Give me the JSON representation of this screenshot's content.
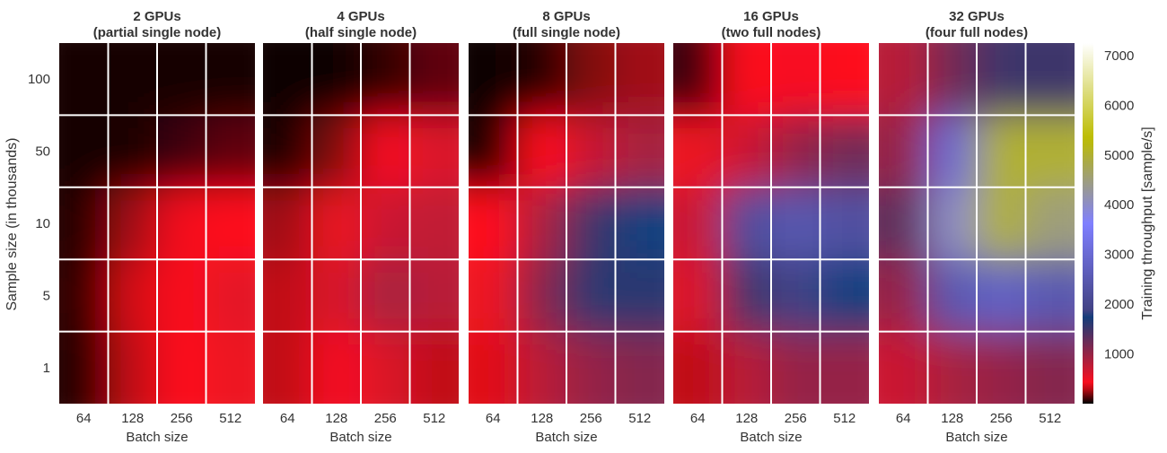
{
  "chart_data": {
    "type": "heatmap",
    "ylabel": "Sample size (in thousands)",
    "xlabel": "Batch size",
    "x_categories": [
      "64",
      "128",
      "256",
      "512"
    ],
    "y_categories": [
      "100",
      "50",
      "10",
      "5",
      "1"
    ],
    "colorbar": {
      "label": "Training throughput [sample/s]",
      "range": [
        0,
        7250
      ],
      "ticks": [
        "1000",
        "2000",
        "3000",
        "4000",
        "5000",
        "6000",
        "7000"
      ],
      "colormap": "gist_stern"
    },
    "grid": true,
    "panels": [
      {
        "title": "2 GPUs",
        "subtitle": "(partial single node)",
        "values": [
          [
            30,
            30,
            30,
            30
          ],
          [
            30,
            40,
            100,
            150
          ],
          [
            60,
            250,
            380,
            400
          ],
          [
            80,
            330,
            420,
            550
          ],
          [
            60,
            300,
            400,
            500
          ]
        ]
      },
      {
        "title": "4 GPUs",
        "subtitle": "(half single node)",
        "values": [
          [
            20,
            20,
            80,
            150
          ],
          [
            40,
            200,
            450,
            600
          ],
          [
            250,
            500,
            700,
            750
          ],
          [
            300,
            600,
            900,
            800
          ],
          [
            300,
            450,
            600,
            300
          ]
        ]
      },
      {
        "title": "8 GPUs",
        "subtitle": "(full single node)",
        "values": [
          [
            20,
            60,
            200,
            250
          ],
          [
            50,
            400,
            700,
            900
          ],
          [
            400,
            900,
            1500,
            1800
          ],
          [
            500,
            1100,
            1600,
            1600
          ],
          [
            350,
            800,
            1000,
            1100
          ]
        ]
      },
      {
        "title": "16 GPUs",
        "subtitle": "(two full nodes)",
        "values": [
          [
            100,
            400,
            450,
            400
          ],
          [
            500,
            700,
            1000,
            1200
          ],
          [
            700,
            2200,
            2500,
            2300
          ],
          [
            600,
            1500,
            1900,
            1800
          ],
          [
            300,
            800,
            1000,
            1000
          ]
        ]
      },
      {
        "title": "32 GPUs",
        "subtitle": "(four full nodes)",
        "values": [
          [
            800,
            1200,
            1500,
            1500
          ],
          [
            1000,
            3000,
            5000,
            5000
          ],
          [
            1300,
            4000,
            5000,
            4500
          ],
          [
            1000,
            2500,
            2800,
            2500
          ],
          [
            700,
            900,
            1000,
            1100
          ]
        ]
      }
    ]
  }
}
